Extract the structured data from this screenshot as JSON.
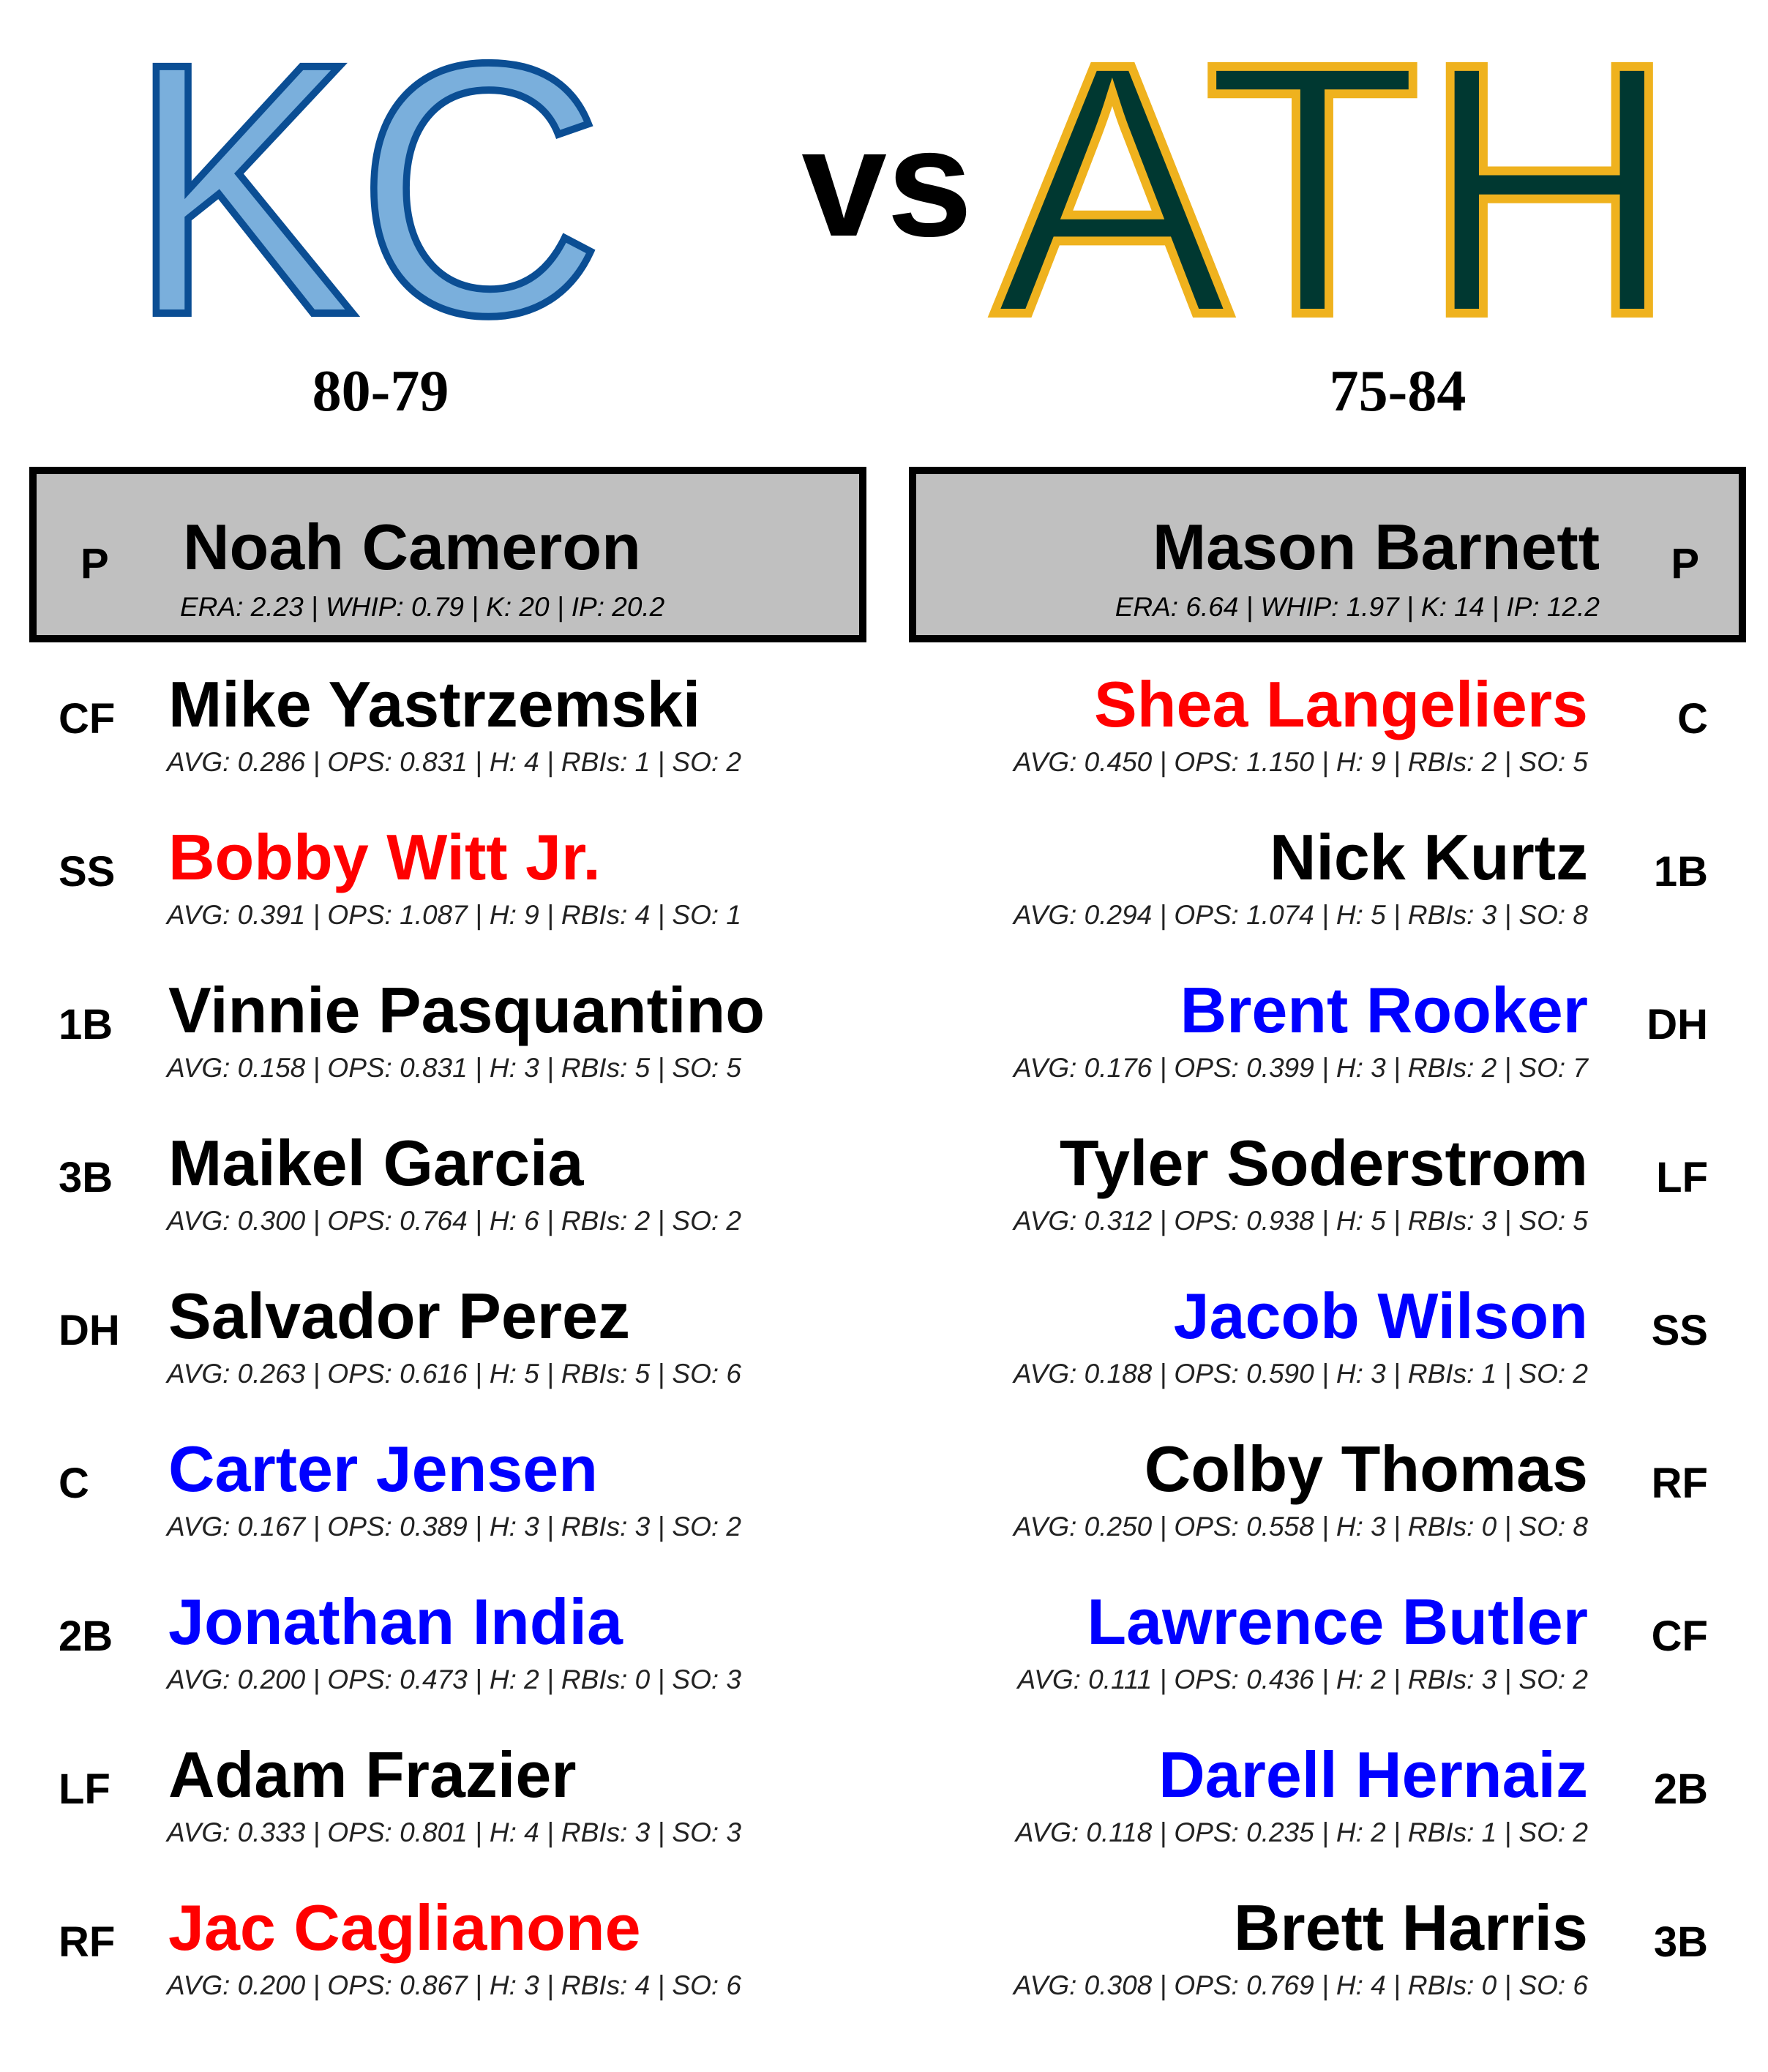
{
  "matchup": {
    "home_abbr": "KC",
    "vs": "vs",
    "away_abbr": "ATH",
    "home_record": "80-79",
    "away_record": "75-84"
  },
  "colors": {
    "kc_fill": "#7aafdc",
    "kc_stroke": "#0b4e94",
    "ath_fill": "#003831",
    "ath_stroke": "#efb21e",
    "hot_player": "#ff0000",
    "cold_player": "#0000ff",
    "neutral_player": "#000000"
  },
  "pitchers": {
    "home": {
      "pos": "P",
      "name": "Noah Cameron",
      "stats": "ERA: 2.23 | WHIP: 0.79 | K: 20 | IP: 20.2"
    },
    "away": {
      "pos": "P",
      "name": "Mason Barnett",
      "stats": "ERA: 6.64 | WHIP: 1.97 | K: 14 | IP: 12.2"
    }
  },
  "home_lineup": [
    {
      "pos": "CF",
      "name": "Mike Yastrzemski",
      "color": "black",
      "stats": "AVG: 0.286 | OPS: 0.831 | H: 4 | RBIs: 1 | SO: 2"
    },
    {
      "pos": "SS",
      "name": "Bobby Witt Jr.",
      "color": "red",
      "stats": "AVG: 0.391 | OPS: 1.087 | H: 9 | RBIs: 4 | SO: 1"
    },
    {
      "pos": "1B",
      "name": "Vinnie Pasquantino",
      "color": "black",
      "stats": "AVG: 0.158 | OPS: 0.831 | H: 3 | RBIs: 5 | SO: 5"
    },
    {
      "pos": "3B",
      "name": "Maikel Garcia",
      "color": "black",
      "stats": "AVG: 0.300 | OPS: 0.764 | H: 6 | RBIs: 2 | SO: 2"
    },
    {
      "pos": "DH",
      "name": "Salvador Perez",
      "color": "black",
      "stats": "AVG: 0.263 | OPS: 0.616 | H: 5 | RBIs: 5 | SO: 6"
    },
    {
      "pos": "C",
      "name": "Carter Jensen",
      "color": "blue",
      "stats": "AVG: 0.167 | OPS: 0.389 | H: 3 | RBIs: 3 | SO: 2"
    },
    {
      "pos": "2B",
      "name": "Jonathan India",
      "color": "blue",
      "stats": "AVG: 0.200 | OPS: 0.473 | H: 2 | RBIs: 0 | SO: 3"
    },
    {
      "pos": "LF",
      "name": "Adam Frazier",
      "color": "black",
      "stats": "AVG: 0.333 | OPS: 0.801 | H: 4 | RBIs: 3 | SO: 3"
    },
    {
      "pos": "RF",
      "name": "Jac Caglianone",
      "color": "red",
      "stats": "AVG: 0.200 | OPS: 0.867 | H: 3 | RBIs: 4 | SO: 6"
    }
  ],
  "away_lineup": [
    {
      "pos": "C",
      "name": "Shea Langeliers",
      "color": "red",
      "stats": "AVG: 0.450 | OPS: 1.150 | H: 9 | RBIs: 2 | SO: 5"
    },
    {
      "pos": "1B",
      "name": "Nick Kurtz",
      "color": "black",
      "stats": "AVG: 0.294 | OPS: 1.074 | H: 5 | RBIs: 3 | SO: 8"
    },
    {
      "pos": "DH",
      "name": "Brent Rooker",
      "color": "blue",
      "stats": "AVG: 0.176 | OPS: 0.399 | H: 3 | RBIs: 2 | SO: 7"
    },
    {
      "pos": "LF",
      "name": "Tyler Soderstrom",
      "color": "black",
      "stats": "AVG: 0.312 | OPS: 0.938 | H: 5 | RBIs: 3 | SO: 5"
    },
    {
      "pos": "SS",
      "name": "Jacob Wilson",
      "color": "blue",
      "stats": "AVG: 0.188 | OPS: 0.590 | H: 3 | RBIs: 1 | SO: 2"
    },
    {
      "pos": "RF",
      "name": "Colby Thomas",
      "color": "black",
      "stats": "AVG: 0.250 | OPS: 0.558 | H: 3 | RBIs: 0 | SO: 8"
    },
    {
      "pos": "CF",
      "name": "Lawrence Butler",
      "color": "blue",
      "stats": "AVG: 0.111 | OPS: 0.436 | H: 2 | RBIs: 3 | SO: 2"
    },
    {
      "pos": "2B",
      "name": "Darell Hernaiz",
      "color": "blue",
      "stats": "AVG: 0.118 | OPS: 0.235 | H: 2 | RBIs: 1 | SO: 2"
    },
    {
      "pos": "3B",
      "name": "Brett Harris",
      "color": "black",
      "stats": "AVG: 0.308 | OPS: 0.769 | H: 4 | RBIs: 0 | SO: 6"
    }
  ]
}
